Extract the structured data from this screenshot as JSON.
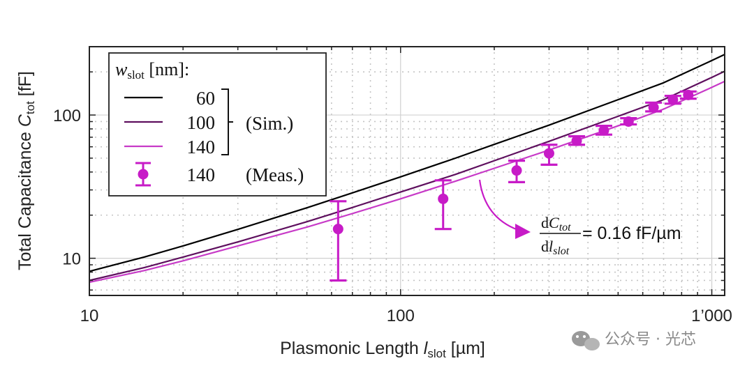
{
  "chart_data": {
    "type": "line",
    "xscale": "log",
    "yscale": "log",
    "xlim": [
      10,
      1100
    ],
    "ylim": [
      5.5,
      300
    ],
    "xlabel": {
      "main": "Plasmonic Length ",
      "symbol": "l",
      "sub": "slot",
      "unit": " [µm]"
    },
    "ylabel": {
      "main": "Total Capacitance ",
      "symbol": "C",
      "sub": "tot",
      "unit": " [fF]"
    },
    "x_ticks": [
      {
        "value": 10,
        "label": "10"
      },
      {
        "value": 100,
        "label": "100"
      },
      {
        "value": 1000,
        "label": "1’000"
      }
    ],
    "y_ticks": [
      {
        "value": 10,
        "label": "10"
      },
      {
        "value": 100,
        "label": "100"
      }
    ],
    "legend": {
      "title_symbol": "w",
      "title_sub": "slot",
      "title_unit": " [nm]:",
      "sim_label": "(Sim.)",
      "meas_label": "(Meas.)"
    },
    "series": [
      {
        "name": "60",
        "kind": "sim",
        "color": "#000000",
        "x": [
          10,
          15,
          20,
          30,
          50,
          70,
          100,
          150,
          200,
          300,
          500,
          700,
          1000,
          1100
        ],
        "y": [
          8.1,
          10.2,
          12.2,
          15.9,
          22.5,
          28.6,
          37.0,
          50.0,
          62.4,
          85.0,
          128,
          168,
          240,
          265
        ]
      },
      {
        "name": "100",
        "kind": "sim",
        "color": "#5e0f5e",
        "x": [
          10,
          15,
          20,
          30,
          50,
          70,
          100,
          150,
          200,
          300,
          500,
          700,
          1000,
          1100
        ],
        "y": [
          7.0,
          8.6,
          10.2,
          13.0,
          18.0,
          22.6,
          29.0,
          38.5,
          48.0,
          65.5,
          98,
          128,
          183,
          202
        ]
      },
      {
        "name": "140",
        "kind": "sim",
        "color": "#c73ac7",
        "x": [
          10,
          15,
          20,
          30,
          50,
          70,
          100,
          150,
          200,
          300,
          500,
          700,
          1000,
          1100
        ],
        "y": [
          6.8,
          8.2,
          9.6,
          12.2,
          16.5,
          20.5,
          26.0,
          34.5,
          42.5,
          57.0,
          84,
          110,
          156,
          172
        ]
      },
      {
        "name": "140",
        "kind": "meas",
        "color": "#c71bc7",
        "x": [
          63,
          137,
          236,
          300,
          368,
          450,
          540,
          650,
          750,
          840
        ],
        "y": [
          16,
          26,
          41,
          54,
          66,
          78,
          90,
          113,
          128,
          138
        ],
        "ylow": [
          7,
          16,
          34,
          45,
          62,
          73,
          86,
          106,
          120,
          130
        ],
        "yhigh": [
          25,
          35,
          48,
          62,
          71,
          84,
          95,
          122,
          136,
          146
        ]
      }
    ],
    "annotation": {
      "num_d": "d",
      "num_sym": "C",
      "num_sub": "tot",
      "den_d": "d",
      "den_sym": "l",
      "den_sub": "slot",
      "value": "= 0.16 fF/µm"
    }
  },
  "watermark": "公众号 · 光芯",
  "colors": {
    "sim60": "#000000",
    "sim100": "#5e0f5e",
    "sim140": "#c73ac7",
    "meas": "#c71bc7"
  }
}
